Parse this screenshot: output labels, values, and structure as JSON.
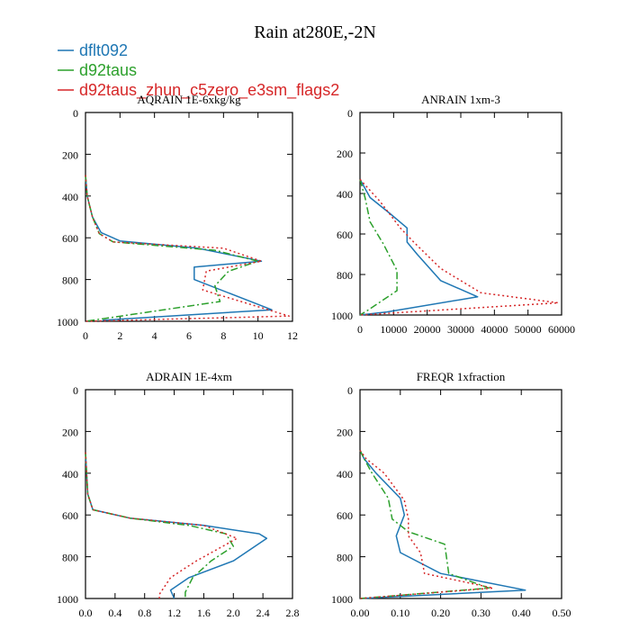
{
  "colors": {
    "blue": "#1f77b4",
    "green": "#2ca02c",
    "red": "#d62728"
  },
  "chart_data": {
    "type": "line",
    "title": "Rain at280E,-2N",
    "legend": [
      {
        "name": "dflt092",
        "color": "#1f77b4",
        "style": "solid"
      },
      {
        "name": "d92taus",
        "color": "#2ca02c",
        "style": "dashdot"
      },
      {
        "name": "d92taus_zhun_c5zero_e3sm_flags2",
        "color": "#d62728",
        "style": "dotted"
      }
    ],
    "panels": [
      {
        "title": "AQRAIN  1E-6xkg/kg",
        "xlim": [
          0,
          12
        ],
        "ylim": [
          0,
          1000
        ],
        "xticks": [
          0,
          2,
          4,
          6,
          8,
          10,
          12
        ],
        "xtick_labels": [
          "0",
          "2",
          "4",
          "6",
          "8",
          "10",
          "12"
        ],
        "yticks": [
          0,
          200,
          400,
          600,
          800,
          1000
        ],
        "series": [
          {
            "name": "dflt092",
            "points": [
              [
                0,
                300
              ],
              [
                0.1,
                400
              ],
              [
                0.4,
                500
              ],
              [
                0.9,
                575
              ],
              [
                2,
                615
              ],
              [
                6.5,
                650
              ],
              [
                10.2,
                712
              ],
              [
                6.3,
                740
              ],
              [
                6.3,
                800
              ],
              [
                10.8,
                945
              ],
              [
                1,
                995
              ]
            ]
          },
          {
            "name": "d92taus",
            "points": [
              [
                0,
                300
              ],
              [
                0.1,
                400
              ],
              [
                0.4,
                500
              ],
              [
                0.8,
                580
              ],
              [
                1.6,
                620
              ],
              [
                7.5,
                660
              ],
              [
                10,
                712
              ],
              [
                8.3,
                760
              ],
              [
                7.5,
                830
              ],
              [
                7.8,
                905
              ],
              [
                0,
                1000
              ]
            ]
          },
          {
            "name": "d92taus_zhun_c5zero_e3sm_flags2",
            "points": [
              [
                0,
                300
              ],
              [
                0.1,
                400
              ],
              [
                0.4,
                500
              ],
              [
                0.8,
                580
              ],
              [
                1.6,
                620
              ],
              [
                8,
                650
              ],
              [
                10.2,
                712
              ],
              [
                7,
                760
              ],
              [
                6.8,
                850
              ],
              [
                11.8,
                975
              ],
              [
                0,
                1000
              ]
            ]
          }
        ]
      },
      {
        "title": "ANRAIN  1xm-3",
        "xlim": [
          0,
          60000
        ],
        "ylim": [
          0,
          1000
        ],
        "xticks": [
          0,
          10000,
          20000,
          30000,
          40000,
          50000,
          60000
        ],
        "xtick_labels": [
          "0",
          "10000",
          "20000",
          "30000",
          "40000",
          "50000",
          "60000"
        ],
        "yticks": [
          0,
          200,
          400,
          600,
          800,
          1000
        ],
        "series": [
          {
            "name": "dflt092",
            "points": [
              [
                0,
                330
              ],
              [
                3000,
                420
              ],
              [
                9000,
                500
              ],
              [
                14000,
                570
              ],
              [
                14000,
                640
              ],
              [
                17000,
                700
              ],
              [
                24000,
                830
              ],
              [
                35000,
                910
              ],
              [
                8000,
                985
              ],
              [
                0,
                1000
              ]
            ]
          },
          {
            "name": "d92taus",
            "points": [
              [
                0,
                330
              ],
              [
                1500,
                420
              ],
              [
                3000,
                540
              ],
              [
                7000,
                650
              ],
              [
                11000,
                780
              ],
              [
                11000,
                880
              ],
              [
                2000,
                980
              ],
              [
                0,
                1000
              ]
            ]
          },
          {
            "name": "d92taus_zhun_c5zero_e3sm_flags2",
            "points": [
              [
                0,
                330
              ],
              [
                6000,
                440
              ],
              [
                12000,
                570
              ],
              [
                16000,
                640
              ],
              [
                24000,
                770
              ],
              [
                36000,
                890
              ],
              [
                59000,
                940
              ],
              [
                0,
                1000
              ]
            ]
          }
        ]
      },
      {
        "title": "ADRAIN  1E-4xm",
        "xlim": [
          0,
          2.8
        ],
        "ylim": [
          0,
          1000
        ],
        "xticks": [
          0,
          0.4,
          0.8,
          1.2,
          1.6,
          2.0,
          2.4,
          2.8
        ],
        "xtick_labels": [
          "0.0",
          "0.4",
          "0.8",
          "1.2",
          "1.6",
          "2.0",
          "2.4",
          "2.8"
        ],
        "yticks": [
          0,
          200,
          400,
          600,
          800,
          1000
        ],
        "series": [
          {
            "name": "dflt092",
            "points": [
              [
                0,
                300
              ],
              [
                0.03,
                500
              ],
              [
                0.1,
                575
              ],
              [
                0.6,
                615
              ],
              [
                1.6,
                650
              ],
              [
                2.35,
                690
              ],
              [
                2.45,
                712
              ],
              [
                2.0,
                820
              ],
              [
                1.4,
                900
              ],
              [
                1.15,
                960
              ],
              [
                1.2,
                1000
              ]
            ]
          },
          {
            "name": "d92taus",
            "points": [
              [
                0,
                300
              ],
              [
                0.03,
                500
              ],
              [
                0.1,
                575
              ],
              [
                0.6,
                615
              ],
              [
                1.4,
                650
              ],
              [
                1.9,
                690
              ],
              [
                2.0,
                750
              ],
              [
                1.7,
                820
              ],
              [
                1.45,
                900
              ],
              [
                1.35,
                970
              ],
              [
                1.35,
                1000
              ]
            ]
          },
          {
            "name": "d92taus_zhun_c5zero_e3sm_flags2",
            "points": [
              [
                0,
                300
              ],
              [
                0.03,
                500
              ],
              [
                0.1,
                575
              ],
              [
                0.6,
                615
              ],
              [
                1.6,
                650
              ],
              [
                2.05,
                712
              ],
              [
                1.5,
                820
              ],
              [
                1.15,
                900
              ],
              [
                1.0,
                980
              ],
              [
                1.0,
                1000
              ]
            ]
          }
        ]
      },
      {
        "title": "FREQR  1xfraction",
        "xlim": [
          0,
          0.5
        ],
        "ylim": [
          0,
          1000
        ],
        "xticks": [
          0,
          0.1,
          0.2,
          0.3,
          0.4,
          0.5
        ],
        "xtick_labels": [
          "0.00",
          "0.10",
          "0.20",
          "0.30",
          "0.40",
          "0.50"
        ],
        "yticks": [
          0,
          200,
          400,
          600,
          800,
          1000
        ],
        "series": [
          {
            "name": "dflt092",
            "points": [
              [
                0,
                290
              ],
              [
                0.01,
                330
              ],
              [
                0.04,
                400
              ],
              [
                0.1,
                520
              ],
              [
                0.11,
                600
              ],
              [
                0.09,
                700
              ],
              [
                0.1,
                780
              ],
              [
                0.2,
                880
              ],
              [
                0.41,
                960
              ],
              [
                0.0,
                1000
              ]
            ]
          },
          {
            "name": "d92taus",
            "points": [
              [
                0,
                290
              ],
              [
                0.01,
                330
              ],
              [
                0.03,
                400
              ],
              [
                0.07,
                520
              ],
              [
                0.08,
                620
              ],
              [
                0.12,
                680
              ],
              [
                0.21,
                740
              ],
              [
                0.22,
                880
              ],
              [
                0.32,
                950
              ],
              [
                0.0,
                1000
              ]
            ]
          },
          {
            "name": "d92taus_zhun_c5zero_e3sm_flags2",
            "points": [
              [
                0,
                290
              ],
              [
                0.015,
                330
              ],
              [
                0.06,
                400
              ],
              [
                0.11,
                530
              ],
              [
                0.12,
                620
              ],
              [
                0.12,
                700
              ],
              [
                0.15,
                780
              ],
              [
                0.16,
                880
              ],
              [
                0.33,
                950
              ],
              [
                0.0,
                1000
              ]
            ]
          }
        ]
      }
    ]
  }
}
